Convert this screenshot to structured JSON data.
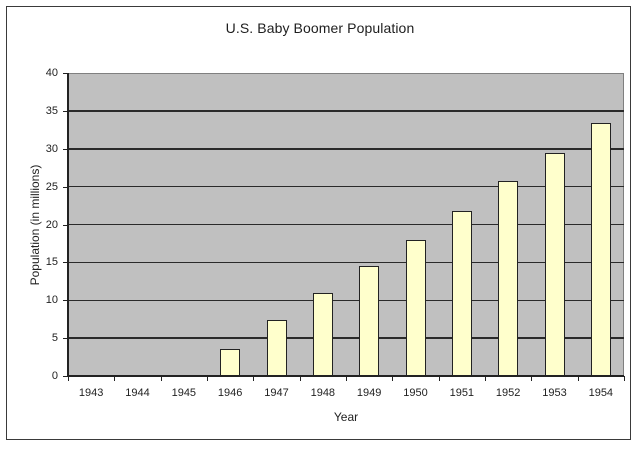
{
  "chart_data": {
    "type": "bar",
    "title": "U.S. Baby Boomer Population",
    "xlabel": "Year",
    "ylabel": "Population (in millions)",
    "categories": [
      "1943",
      "1944",
      "1945",
      "1946",
      "1947",
      "1948",
      "1949",
      "1950",
      "1951",
      "1952",
      "1953",
      "1954"
    ],
    "values": [
      0,
      0,
      0,
      3.6,
      7.4,
      10.9,
      14.5,
      18.0,
      21.8,
      25.7,
      29.5,
      33.4
    ],
    "ylim": [
      0,
      40
    ],
    "yticks": [
      0,
      5,
      10,
      15,
      20,
      25,
      30,
      35,
      40
    ],
    "grid": true,
    "legend": "none",
    "colors": {
      "bar_fill": "#ffffcc",
      "bar_edge": "#222222",
      "plot_bg": "#c0c0c0",
      "gridline": "#2a2a2a"
    }
  },
  "ytick_labels": [
    "0",
    "5",
    "10",
    "15",
    "20",
    "25",
    "30",
    "35",
    "40"
  ]
}
